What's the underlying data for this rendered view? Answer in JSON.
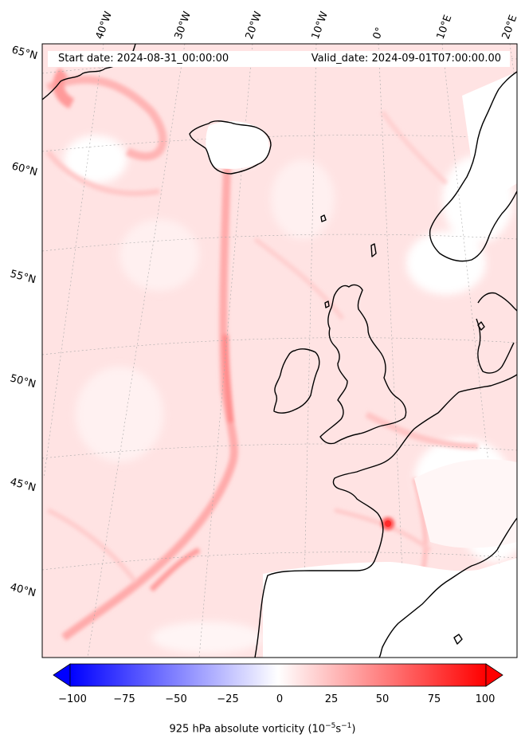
{
  "header": {
    "start_label": "Start date: 2024-08-31_00:00:00",
    "valid_label": "Valid_date: 2024-09-01T07:00:00.00"
  },
  "map": {
    "projection": "lambert-conformal",
    "field": "925 hPa absolute vorticity",
    "region": "North Atlantic and Western Europe",
    "lon_labels": [
      "40°W",
      "30°W",
      "20°W",
      "10°W",
      "0°",
      "10°E",
      "20°E"
    ],
    "lat_labels": [
      "65°N",
      "60°N",
      "55°N",
      "50°N",
      "45°N",
      "40°N"
    ],
    "gridlines": true,
    "coastlines": true
  },
  "colorbar": {
    "title_main": "925 hPa absolute vorticity (10",
    "title_exp1": "−5",
    "title_mid": "s",
    "title_exp2": "−1",
    "title_end": ")",
    "colormap": "bwr",
    "min": -100,
    "max": 100,
    "extend": "both",
    "ticks": [
      "−100",
      "−75",
      "−50",
      "−25",
      "0",
      "25",
      "50",
      "75",
      "100"
    ],
    "low_color": "#0000ff",
    "mid_color": "#ffffff",
    "high_color": "#ff0000"
  }
}
